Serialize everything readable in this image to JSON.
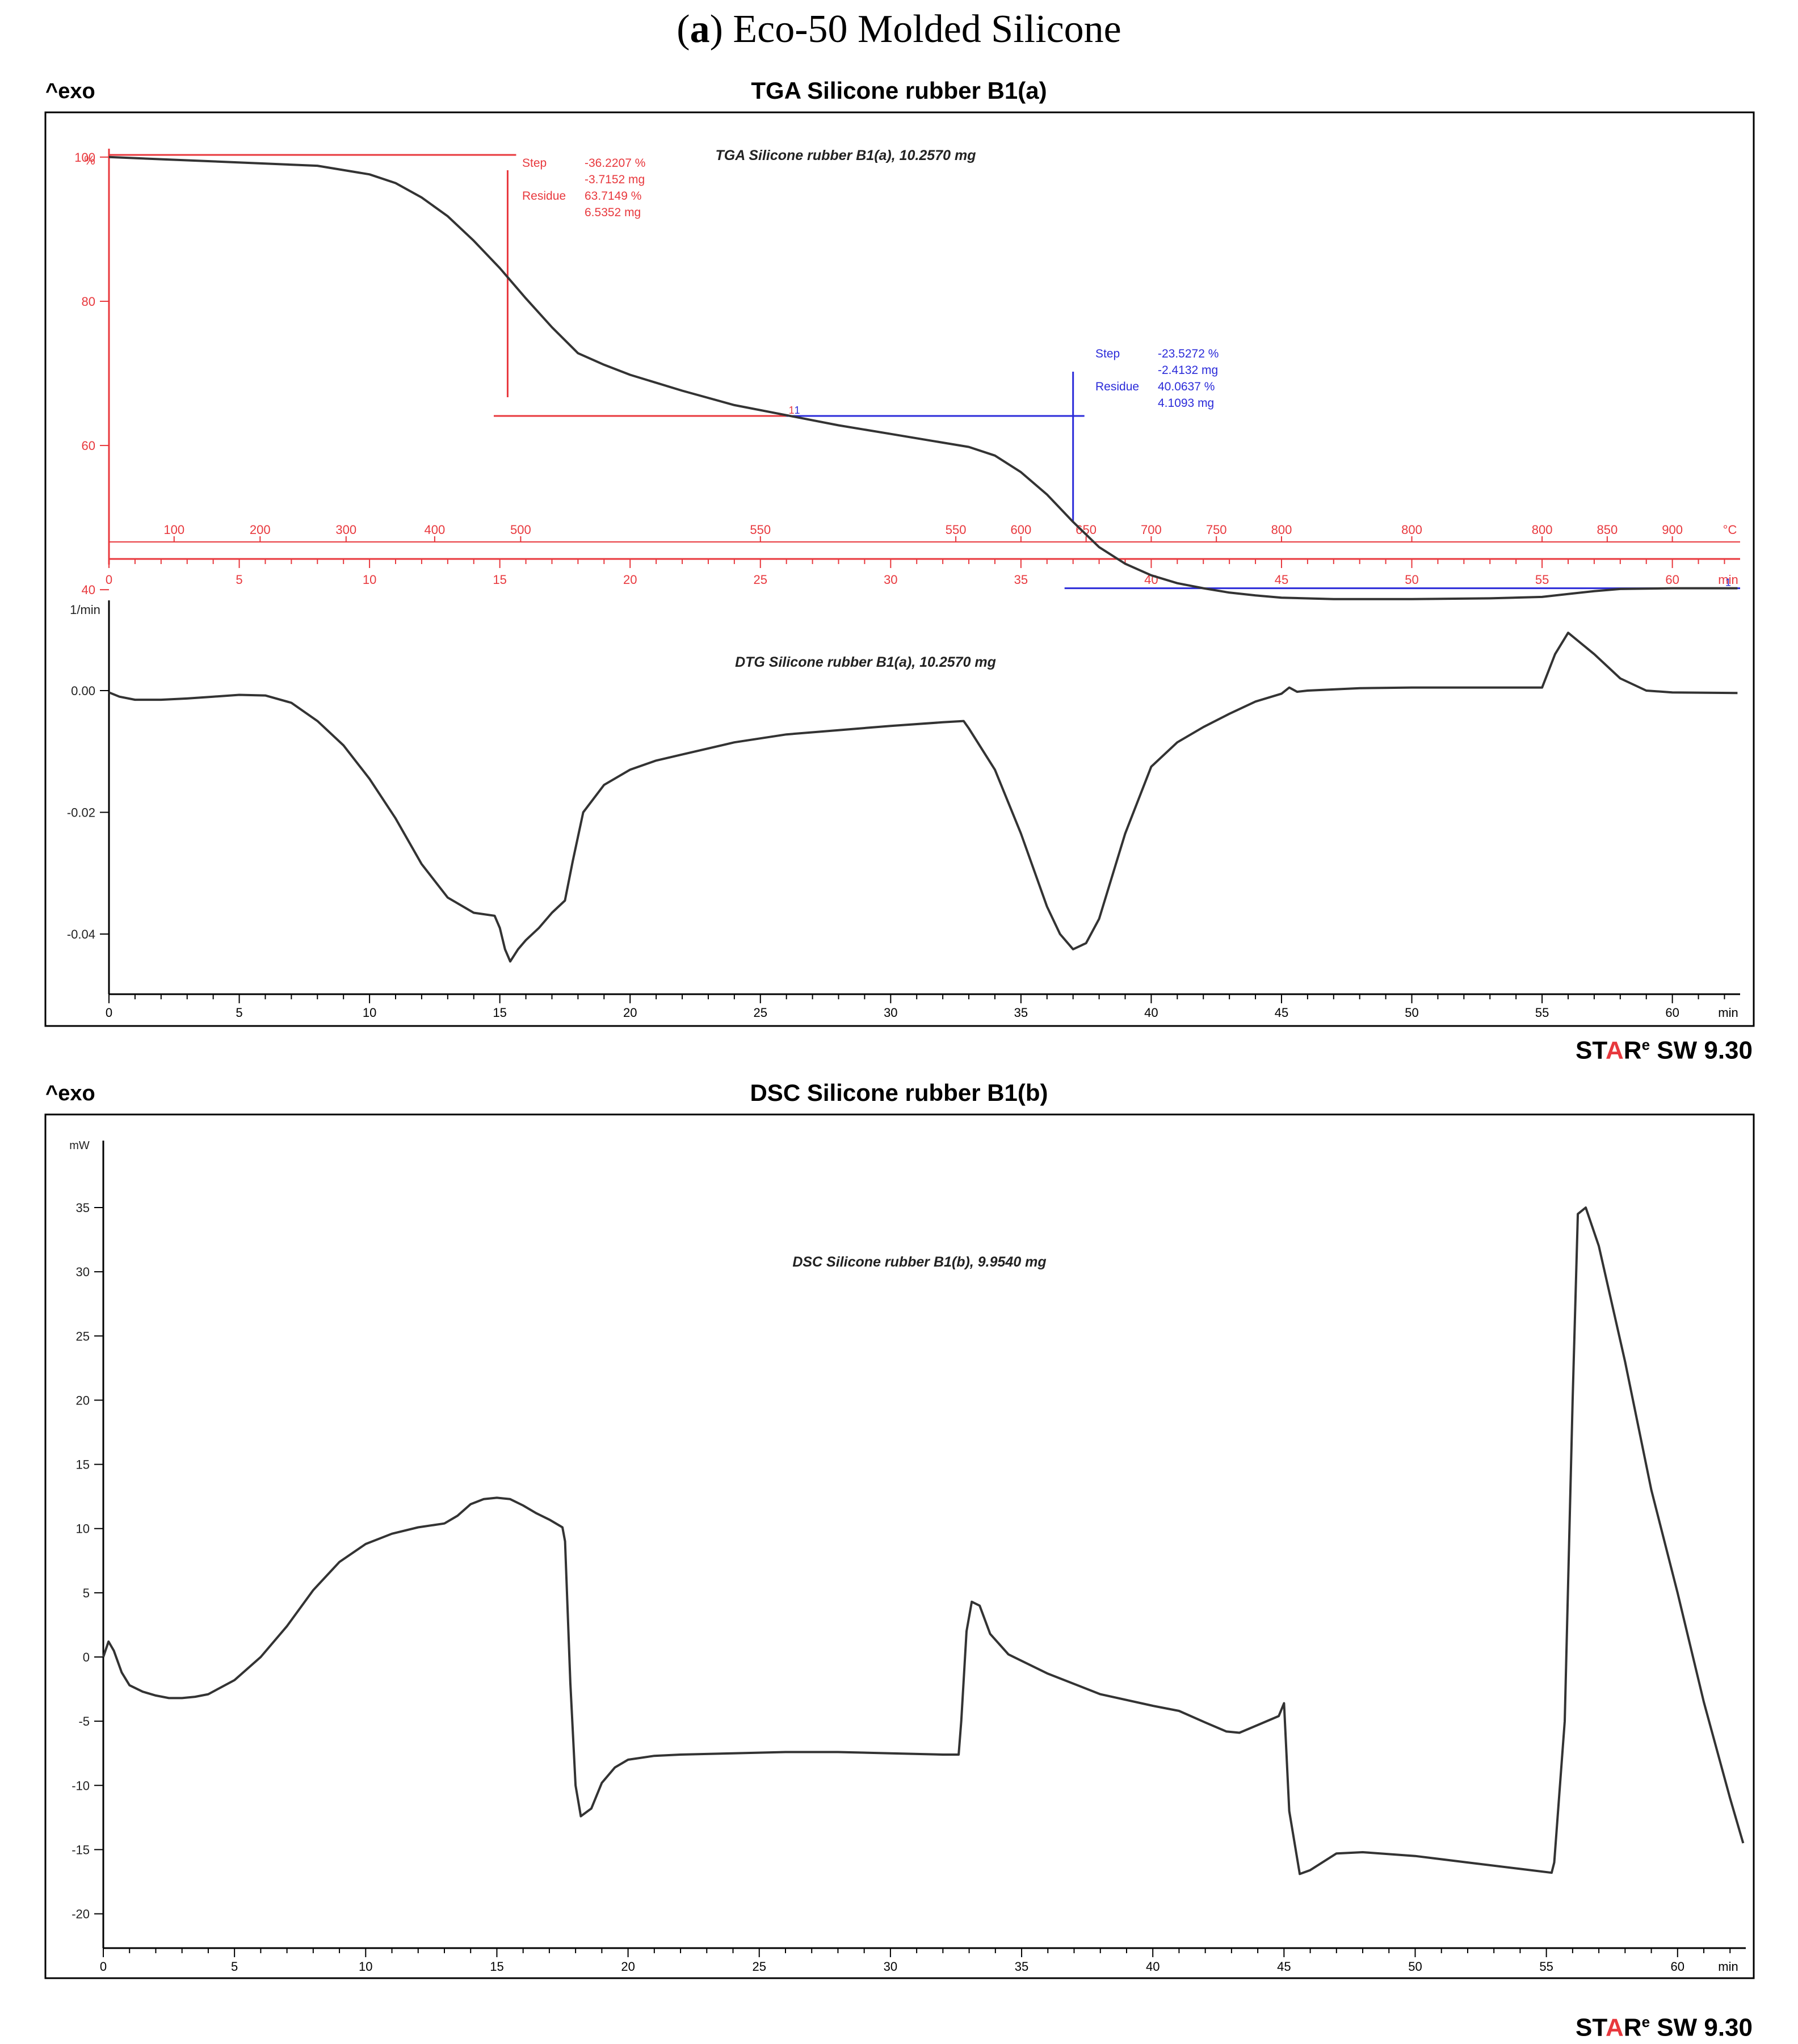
{
  "figure_title": {
    "paren_open": "(",
    "letter": "a",
    "rest": ") Eco-50 Molded Silicone"
  },
  "software": {
    "brand_st": "ST",
    "brand_a": "A",
    "brand_r": "R",
    "brand_sup": "e",
    "version": " SW 9.30"
  },
  "colors": {
    "curve": "#333333",
    "tga_annot": "#e8383d",
    "tga_annot2": "#2b2bd9",
    "frame": "#000000",
    "brand_red": "#e8383d"
  },
  "chart_data": [
    {
      "type": "line",
      "id": "tga",
      "title": "TGA Silicone rubber B1(a)",
      "exo_label": "^exo",
      "curve_label": "TGA Silicone rubber B1(a), 10.2570 mg",
      "ylabel": "%",
      "ylim": [
        36,
        104
      ],
      "xlim": [
        0,
        62.6
      ],
      "yticks": [
        40,
        60,
        80,
        100
      ],
      "xticks": [
        0,
        5,
        10,
        15,
        20,
        25,
        30,
        35,
        40,
        45,
        50,
        55,
        60
      ],
      "xunit": "min",
      "temp_unit": "°C",
      "temp_ticks": [
        {
          "t": 2.5,
          "label": "100"
        },
        {
          "t": 5.8,
          "label": "200"
        },
        {
          "t": 9.1,
          "label": "300"
        },
        {
          "t": 12.5,
          "label": "400"
        },
        {
          "t": 15.8,
          "label": "500"
        },
        {
          "t": 25,
          "label": "550"
        },
        {
          "t": 32.5,
          "label": "550"
        },
        {
          "t": 35,
          "label": "600"
        },
        {
          "t": 37.5,
          "label": "650"
        },
        {
          "t": 40,
          "label": "700"
        },
        {
          "t": 42.5,
          "label": "750"
        },
        {
          "t": 45,
          "label": "800"
        },
        {
          "t": 50,
          "label": "800"
        },
        {
          "t": 55,
          "label": "800"
        },
        {
          "t": 57.5,
          "label": "850"
        },
        {
          "t": 60,
          "label": "900"
        }
      ],
      "series": [
        {
          "name": "TGA",
          "x": [
            0,
            2,
            4,
            6,
            8,
            10,
            11,
            12,
            13,
            14,
            15,
            16,
            17,
            18,
            19,
            20,
            22,
            24,
            26,
            28,
            30,
            32,
            33,
            34,
            35,
            36,
            37,
            38,
            39,
            40,
            41,
            42,
            43,
            44,
            45,
            47,
            50,
            53,
            55,
            56,
            57,
            58,
            60,
            62.5
          ],
          "y": [
            100,
            99.7,
            99.4,
            99.1,
            98.8,
            97.6,
            96.4,
            94.4,
            91.8,
            88.4,
            84.6,
            80.4,
            76.4,
            72.8,
            71.2,
            69.8,
            67.6,
            65.6,
            64.2,
            62.8,
            61.6,
            60.4,
            59.8,
            58.6,
            56.3,
            53.2,
            49.4,
            45.9,
            43.6,
            42.0,
            40.9,
            40.2,
            39.6,
            39.2,
            38.9,
            38.7,
            38.7,
            38.8,
            39.0,
            39.4,
            39.8,
            40.1,
            40.2,
            40.2
          ]
        }
      ],
      "annotations": [
        {
          "color": "red",
          "step_label": "Step",
          "step_pct": "-36.2207 %",
          "step_mg": "-3.7152 mg",
          "residue_label": "Residue",
          "residue_pct": "63.7149 %",
          "residue_mg": "6.5352 mg",
          "x": 15.3,
          "y_top": 100.3,
          "y_bottom": 64.1
        },
        {
          "color": "blue",
          "step_label": "Step",
          "step_pct": "-23.5272 %",
          "step_mg": "-2.4132 mg",
          "residue_label": "Residue",
          "residue_pct": "40.0637 %",
          "residue_mg": "4.1093 mg",
          "x": 37,
          "y_top": 64.1,
          "y_bottom": 40.2
        }
      ]
    },
    {
      "type": "line",
      "id": "dtg",
      "curve_label": "DTG Silicone rubber B1(a), 10.2570 mg",
      "ylabel": "1/min",
      "ylim": [
        -0.0495,
        0.015
      ],
      "xlim": [
        0,
        62.6
      ],
      "yticks": [
        0.0,
        -0.02,
        -0.04
      ],
      "ytick_labels": [
        "0.00",
        "-0.02",
        "-0.04"
      ],
      "xticks": [
        0,
        5,
        10,
        15,
        20,
        25,
        30,
        35,
        40,
        45,
        50,
        55,
        60
      ],
      "xunit": "min",
      "series": [
        {
          "name": "DTG",
          "x": [
            0,
            0.4,
            1,
            2,
            3,
            4,
            5,
            6,
            7,
            8,
            9,
            10,
            11,
            12,
            13,
            14,
            14.8,
            15,
            15.2,
            15.4,
            15.7,
            16,
            16.5,
            17,
            17.5,
            17.8,
            18.2,
            19,
            20,
            21,
            22,
            24,
            26,
            28,
            30,
            32,
            32.8,
            33,
            34,
            35,
            36,
            36.5,
            37,
            37.5,
            38,
            39,
            40,
            41,
            42,
            43,
            44,
            45,
            45.3,
            45.6,
            46,
            48,
            50,
            52,
            55,
            55.5,
            56,
            57,
            58,
            59,
            60,
            62.5
          ],
          "y": [
            -0.0003,
            -0.001,
            -0.0015,
            -0.0015,
            -0.0013,
            -0.001,
            -0.0007,
            -0.0008,
            -0.002,
            -0.005,
            -0.009,
            -0.0145,
            -0.021,
            -0.0285,
            -0.034,
            -0.0365,
            -0.037,
            -0.039,
            -0.0425,
            -0.0445,
            -0.0425,
            -0.041,
            -0.039,
            -0.0365,
            -0.0345,
            -0.028,
            -0.02,
            -0.0155,
            -0.013,
            -0.0115,
            -0.0105,
            -0.0085,
            -0.0072,
            -0.0065,
            -0.0058,
            -0.0052,
            -0.005,
            -0.0062,
            -0.013,
            -0.0235,
            -0.0355,
            -0.04,
            -0.0425,
            -0.0415,
            -0.0375,
            -0.0235,
            -0.0125,
            -0.0085,
            -0.006,
            -0.0038,
            -0.0018,
            -0.0005,
            0.0005,
            -0.0002,
            0.0,
            0.0004,
            0.0005,
            0.0005,
            0.0005,
            0.006,
            0.0095,
            0.006,
            0.002,
            0.0,
            -0.0003,
            -0.0004
          ]
        }
      ]
    },
    {
      "type": "line",
      "id": "dsc",
      "title": "DSC Silicone rubber B1(b)",
      "exo_label": "^exo",
      "curve_label": "DSC Silicone rubber B1(b), 9.9540 mg",
      "ylabel": "mW",
      "ylim": [
        -23,
        40
      ],
      "xlim": [
        0,
        62.6
      ],
      "yticks": [
        35,
        30,
        25,
        20,
        15,
        10,
        5,
        0,
        -5,
        -10,
        -15,
        -20
      ],
      "xticks": [
        0,
        5,
        10,
        15,
        20,
        25,
        30,
        35,
        40,
        45,
        50,
        55,
        60
      ],
      "xunit": "min",
      "series": [
        {
          "name": "DSC",
          "x": [
            0,
            0.2,
            0.4,
            0.7,
            1,
            1.5,
            2,
            2.5,
            3,
            3.5,
            4,
            5,
            6,
            7,
            8,
            9,
            10,
            11,
            12,
            13,
            13.5,
            14,
            14.5,
            15,
            15.5,
            16,
            16.5,
            17,
            17.5,
            17.6,
            17.8,
            18,
            18.2,
            18.6,
            19,
            19.5,
            20,
            21,
            22,
            24,
            26,
            28,
            30,
            32,
            32.6,
            32.7,
            32.9,
            33.1,
            33.4,
            33.8,
            34.5,
            36,
            38,
            40,
            41,
            42,
            42.8,
            43.3,
            44,
            44.8,
            45,
            45.2,
            45.6,
            46,
            47,
            48,
            50,
            52,
            54,
            55.2,
            55.3,
            55.7,
            56,
            56.2,
            56.5,
            57,
            58,
            59,
            60,
            61,
            62,
            62.5
          ],
          "y": [
            0,
            1.2,
            0.5,
            -1.2,
            -2.2,
            -2.7,
            -3,
            -3.2,
            -3.2,
            -3.1,
            -2.9,
            -1.8,
            0,
            2.4,
            5.2,
            7.4,
            8.8,
            9.6,
            10.1,
            10.4,
            11,
            11.9,
            12.3,
            12.4,
            12.3,
            11.8,
            11.2,
            10.7,
            10.1,
            9.0,
            -2,
            -10,
            -12.4,
            -11.8,
            -9.8,
            -8.6,
            -8.0,
            -7.7,
            -7.6,
            -7.5,
            -7.4,
            -7.4,
            -7.5,
            -7.6,
            -7.6,
            -5,
            2,
            4.3,
            4.0,
            1.8,
            0.2,
            -1.3,
            -2.9,
            -3.8,
            -4.2,
            -5.1,
            -5.8,
            -5.9,
            -5.3,
            -4.6,
            -3.6,
            -12,
            -16.9,
            -16.6,
            -15.3,
            -15.2,
            -15.5,
            -16.0,
            -16.5,
            -16.8,
            -16.0,
            -5,
            20,
            34.5,
            35.0,
            32,
            23,
            13,
            5,
            -3.5,
            -11,
            -14.5
          ]
        }
      ]
    }
  ]
}
